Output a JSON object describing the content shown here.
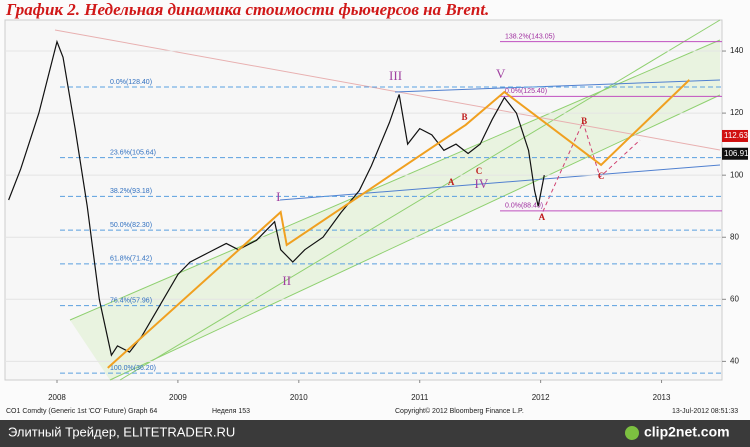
{
  "chart_data": {
    "type": "line",
    "title": "График 2.   Недельная динамика стоимости фьючерсов на Brent.",
    "xlim": [
      2008.07,
      2014.0
    ],
    "xticks": [
      {
        "value": 2008.5,
        "label": "2008"
      },
      {
        "value": 2009.5,
        "label": "2009"
      },
      {
        "value": 2010.5,
        "label": "2010"
      },
      {
        "value": 2011.5,
        "label": "2011"
      },
      {
        "value": 2012.5,
        "label": "2012"
      },
      {
        "value": 2013.5,
        "label": "2013"
      }
    ],
    "ylim": [
      34,
      150
    ],
    "yticks": [
      40,
      60,
      80,
      100,
      120,
      140
    ],
    "grid": true,
    "series": [
      {
        "name": "CO1 Comdty (Generic 1st 'CO' Future) Graph 64",
        "color": "#111111",
        "x": [
          2008.1,
          2008.2,
          2008.35,
          2008.5,
          2008.55,
          2008.65,
          2008.75,
          2008.85,
          2008.95,
          2009.0,
          2009.1,
          2009.2,
          2009.35,
          2009.5,
          2009.6,
          2009.75,
          2009.9,
          2010.0,
          2010.15,
          2010.3,
          2010.35,
          2010.45,
          2010.55,
          2010.7,
          2010.85,
          2011.0,
          2011.1,
          2011.25,
          2011.33,
          2011.4,
          2011.5,
          2011.6,
          2011.7,
          2011.8,
          2011.9,
          2012.0,
          2012.1,
          2012.2,
          2012.3,
          2012.4,
          2012.45,
          2012.48,
          2012.53
        ],
        "values": [
          92,
          102,
          120,
          143,
          138,
          115,
          90,
          60,
          42,
          45,
          43,
          48,
          58,
          68,
          72,
          75,
          78,
          76,
          79,
          85,
          76,
          72,
          76,
          80,
          88,
          95,
          103,
          117,
          126,
          110,
          115,
          113,
          108,
          110,
          107,
          110,
          118,
          125,
          120,
          108,
          95,
          90,
          100
        ]
      },
      {
        "color": "#f0a020",
        "x": [
          2008.92,
          2010.35,
          2010.4,
          2011.88,
          2012.2,
          2013.0,
          2013.73
        ],
        "values": [
          37.9,
          88.1,
          77.5,
          116.2,
          126.8,
          103.3,
          130.7
        ]
      }
    ],
    "fib_levels": [
      {
        "value": 128.4,
        "label": "0.0%(128.40)"
      },
      {
        "value": 105.64,
        "label": "23.6%(105.64)"
      },
      {
        "value": 93.18,
        "label": "38.2%(93.18)"
      },
      {
        "value": 82.3,
        "label": "50.0%(82.30)"
      },
      {
        "value": 71.42,
        "label": "61.8%(71.42)"
      },
      {
        "value": 57.96,
        "label": "76.4%(57.96)"
      },
      {
        "value": 36.2,
        "label": "100.0%(36.20)"
      }
    ],
    "fib_projection": [
      {
        "value": 143.05,
        "label": "138.2%(143.05)"
      },
      {
        "value": 125.4,
        "label": "0.0%(125.40)"
      },
      {
        "value": 88.49,
        "label": "0.0%(88.49)"
      }
    ],
    "annotations": [
      {
        "text": "I",
        "x": 2010.33,
        "y": 92.6,
        "color": "#a040a0"
      },
      {
        "text": "II",
        "x": 2010.4,
        "y": 65.6,
        "color": "#a040a0"
      },
      {
        "text": "III",
        "x": 2011.3,
        "y": 131.6,
        "color": "#a040a0"
      },
      {
        "text": "IV",
        "x": 2012.01,
        "y": 96.8,
        "color": "#a040a0"
      },
      {
        "text": "V",
        "x": 2012.17,
        "y": 132.3,
        "color": "#a040a0"
      },
      {
        "text": "A",
        "x": 2011.76,
        "y": 97.5,
        "color": "#c02020"
      },
      {
        "text": "B",
        "x": 2011.87,
        "y": 118.4,
        "color": "#c02020"
      },
      {
        "text": "C",
        "x": 2011.99,
        "y": 101,
        "color": "#c02020"
      },
      {
        "text": "A",
        "x": 2012.51,
        "y": 86.2,
        "color": "#c02020"
      },
      {
        "text": "B",
        "x": 2012.86,
        "y": 117.1,
        "color": "#c02020"
      },
      {
        "text": "C",
        "x": 2013.0,
        "y": 99.4,
        "color": "#c02020"
      }
    ],
    "price_tags": [
      {
        "value": 112.63,
        "color": "#d01010"
      },
      {
        "value": 106.91,
        "color": "#111111"
      }
    ],
    "footer": [
      "Неделя 153",
      "Copyright© 2012 Bloomberg Finance L.P.",
      "13-Jul-2012 08:51:33"
    ],
    "watermark": "Элитный Трейдер, ELITETRADER.RU",
    "brand": "clip2net.com"
  }
}
